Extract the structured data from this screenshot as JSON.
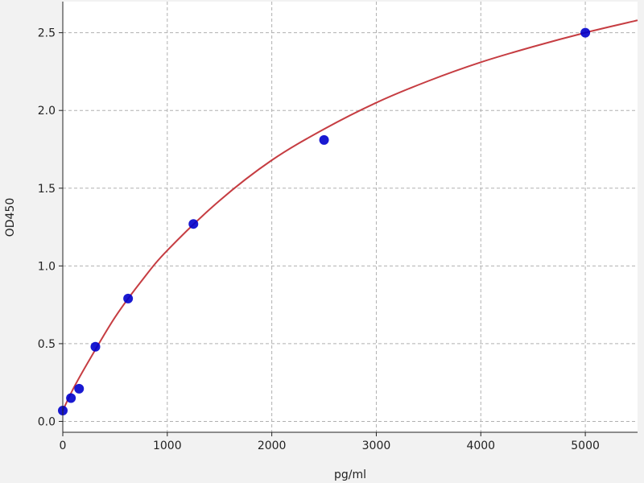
{
  "chart_data": {
    "type": "scatter",
    "title": "",
    "xlabel": "pg/ml",
    "ylabel": "OD450",
    "xlim": [
      0,
      5500
    ],
    "ylim": [
      -0.07,
      2.7
    ],
    "xticks": [
      0,
      1000,
      2000,
      3000,
      4000,
      5000
    ],
    "xtick_labels": [
      "0",
      "1000",
      "2000",
      "3000",
      "4000",
      "5000"
    ],
    "yticks": [
      0.0,
      0.5,
      1.0,
      1.5,
      2.0,
      2.5
    ],
    "ytick_labels": [
      "0.0",
      "0.5",
      "1.0",
      "1.5",
      "2.0",
      "2.5"
    ],
    "grid": true,
    "series": [
      {
        "kind": "points",
        "color": "#0000cc",
        "x": [
          0,
          78,
          156,
          312,
          625,
          1250,
          2500,
          5000
        ],
        "y": [
          0.07,
          0.15,
          0.21,
          0.48,
          0.79,
          1.27,
          1.81,
          2.5
        ]
      },
      {
        "kind": "fit-curve",
        "color": "#c0282d",
        "x": [
          0,
          100,
          250,
          500,
          750,
          1000,
          1500,
          2000,
          2500,
          3000,
          3500,
          4000,
          4500,
          5000,
          5500
        ],
        "y": [
          0.07,
          0.21,
          0.39,
          0.67,
          0.9,
          1.1,
          1.42,
          1.68,
          1.88,
          2.05,
          2.19,
          2.31,
          2.41,
          2.5,
          2.58
        ]
      }
    ]
  }
}
